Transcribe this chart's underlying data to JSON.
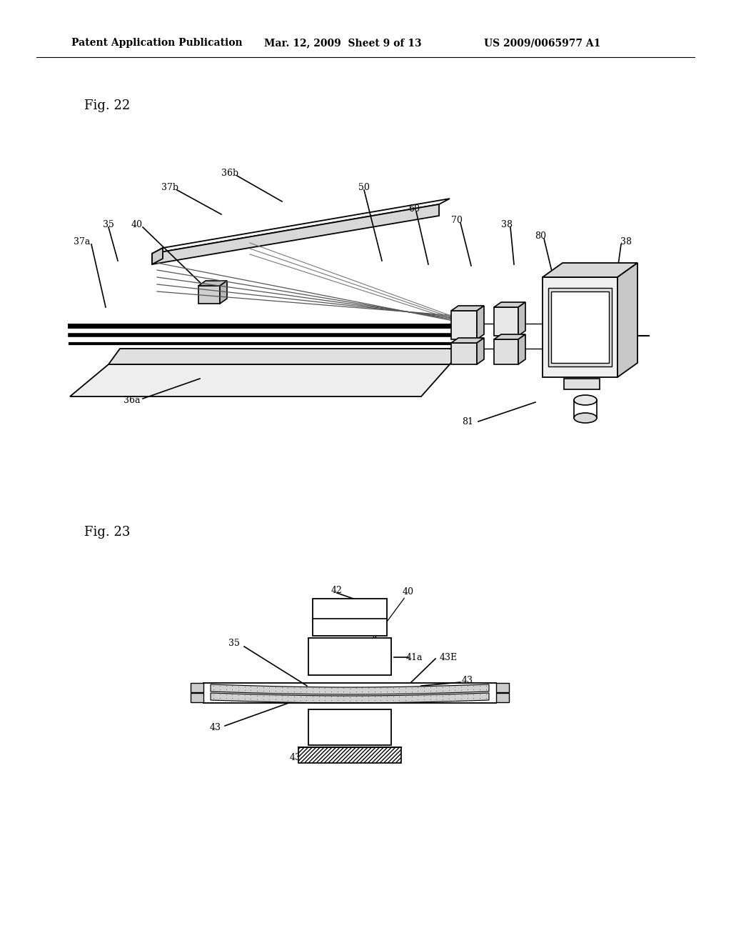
{
  "bg_color": "#ffffff",
  "header_line1": "Patent Application Publication",
  "header_line2": "Mar. 12, 2009  Sheet 9 of 13",
  "header_line3": "US 2009/0065977 A1",
  "fig22_label": "Fig. 22",
  "fig23_label": "Fig. 23",
  "lc": "#000000"
}
